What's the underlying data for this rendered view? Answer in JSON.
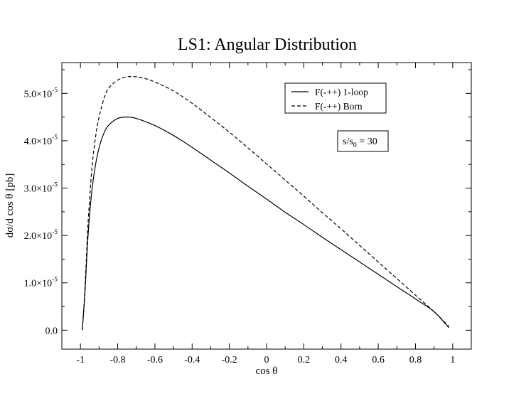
{
  "chart_data": {
    "type": "line",
    "title": "LS1: Angular Distribution",
    "xlabel": "cos θ",
    "ylabel": "dσ/d cos θ [pb]",
    "xlim": [
      -1.1,
      1.1
    ],
    "ylim": [
      -4e-06,
      5.65e-05
    ],
    "x_ticks": [
      -1,
      -0.8,
      -0.6,
      -0.4,
      -0.2,
      0,
      0.2,
      0.4,
      0.6,
      0.8,
      1
    ],
    "x_tick_labels": [
      "-1",
      "-0.8",
      "-0.6",
      "-0.4",
      "-0.2",
      "0",
      "0.2",
      "0.4",
      "0.6",
      "0.8",
      "1"
    ],
    "y_ticks": [
      0,
      1e-05,
      2e-05,
      3e-05,
      4e-05,
      5e-05
    ],
    "y_tick_labels": [
      {
        "mantissa": "0.0",
        "exponent": ""
      },
      {
        "mantissa": "1.0×10",
        "exponent": "-5"
      },
      {
        "mantissa": "2.0×10",
        "exponent": "-5"
      },
      {
        "mantissa": "3.0×10",
        "exponent": "-5"
      },
      {
        "mantissa": "4.0×10",
        "exponent": "-5"
      },
      {
        "mantissa": "5.0×10",
        "exponent": "-5"
      }
    ],
    "grid": false,
    "legend_position": "top-right",
    "annotation": {
      "prefix": "s/s",
      "subscript": "0",
      "suffix": " = 30"
    },
    "series": [
      {
        "name": "F(-++) 1-loop",
        "style": "solid",
        "x": [
          -0.99,
          -0.975,
          -0.96,
          -0.94,
          -0.92,
          -0.9,
          -0.875,
          -0.85,
          -0.8,
          -0.75,
          -0.7,
          -0.6,
          -0.5,
          -0.4,
          -0.3,
          -0.2,
          -0.1,
          0,
          0.1,
          0.2,
          0.3,
          0.4,
          0.5,
          0.6,
          0.7,
          0.8,
          0.9,
          0.98
        ],
        "y": [
          0.0,
          8.5e-06,
          1.95e-05,
          2.9e-05,
          3.47e-05,
          3.85e-05,
          4.15e-05,
          4.32e-05,
          4.47e-05,
          4.5e-05,
          4.47e-05,
          4.32e-05,
          4.11e-05,
          3.86e-05,
          3.59e-05,
          3.32e-05,
          3.04e-05,
          2.77e-05,
          2.49e-05,
          2.23e-05,
          1.96e-05,
          1.7e-05,
          1.44e-05,
          1.18e-05,
          9.2e-06,
          6.6e-06,
          3.9e-06,
          5e-07
        ]
      },
      {
        "name": "F(-++) Born",
        "style": "dashed",
        "x": [
          -0.99,
          -0.975,
          -0.96,
          -0.94,
          -0.92,
          -0.9,
          -0.875,
          -0.85,
          -0.8,
          -0.75,
          -0.7,
          -0.65,
          -0.6,
          -0.5,
          -0.4,
          -0.3,
          -0.2,
          -0.1,
          0,
          0.1,
          0.2,
          0.3,
          0.4,
          0.5,
          0.6,
          0.7,
          0.8,
          0.9,
          0.98
        ],
        "y": [
          0.0,
          9.5e-06,
          2.2e-05,
          3.35e-05,
          4.05e-05,
          4.5e-05,
          4.87e-05,
          5.1e-05,
          5.28e-05,
          5.35e-05,
          5.35e-05,
          5.31e-05,
          5.24e-05,
          5.05e-05,
          4.79e-05,
          4.49e-05,
          4.18e-05,
          3.85e-05,
          3.51e-05,
          3.17e-05,
          2.83e-05,
          2.48e-05,
          2.14e-05,
          1.79e-05,
          1.44e-05,
          1.09e-05,
          7.4e-06,
          3.9e-06,
          8e-07
        ]
      }
    ]
  }
}
